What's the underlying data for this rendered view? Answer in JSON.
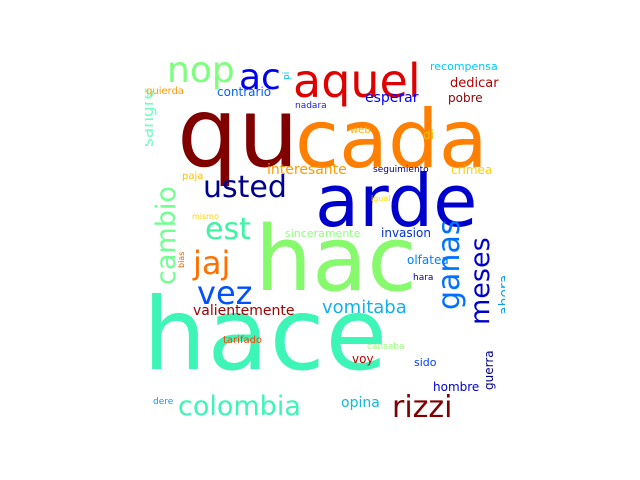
{
  "words": [
    {
      "id": "hace",
      "text": "hace",
      "color": "#3cf5b6"
    },
    {
      "id": "hac",
      "text": "hac",
      "color": "#86f96d"
    },
    {
      "id": "qu",
      "text": "qu",
      "color": "#800000"
    },
    {
      "id": "cada",
      "text": "cada",
      "color": "#ff7f00"
    },
    {
      "id": "arde",
      "text": "arde",
      "color": "#0000cd"
    },
    {
      "id": "aquel",
      "text": "aquel",
      "color": "#e00000"
    },
    {
      "id": "ac",
      "text": "ac",
      "color": "#0000ee"
    },
    {
      "id": "nop",
      "text": "nop",
      "color": "#7cff7c"
    },
    {
      "id": "usted",
      "text": "usted",
      "color": "#000090"
    },
    {
      "id": "est",
      "text": "est",
      "color": "#3cf5a0"
    },
    {
      "id": "jaj",
      "text": "jaj",
      "color": "#ff7000"
    },
    {
      "id": "vez",
      "text": "vez",
      "color": "#0050ff"
    },
    {
      "id": "cambio",
      "text": "cambio",
      "color": "#70ff90"
    },
    {
      "id": "colombia",
      "text": "colombia",
      "color": "#3cf5b6"
    },
    {
      "id": "rizzi",
      "text": "rizzi",
      "color": "#800000"
    },
    {
      "id": "ganas",
      "text": "ganas",
      "color": "#0070ff"
    },
    {
      "id": "meses",
      "text": "meses",
      "color": "#0000cd"
    },
    {
      "id": "vomitaba",
      "text": "vomitaba",
      "color": "#10b0f0"
    },
    {
      "id": "valientemente",
      "text": "valientemente",
      "color": "#a00000"
    },
    {
      "id": "interesante",
      "text": "interesante",
      "color": "#ff9a00"
    },
    {
      "id": "sangre",
      "text": "sangre",
      "color": "#70ffc0"
    },
    {
      "id": "recompensa",
      "text": "recompensa",
      "color": "#00c8ff"
    },
    {
      "id": "dedicar",
      "text": "dedicar",
      "color": "#b00000"
    },
    {
      "id": "pobre",
      "text": "pobre",
      "color": "#8b0000"
    },
    {
      "id": "esperar",
      "text": "esperar",
      "color": "#0000ff"
    },
    {
      "id": "contrario",
      "text": "contrario",
      "color": "#0060ff"
    },
    {
      "id": "izquierda",
      "text": "izquierda",
      "color": "#ff9a00"
    },
    {
      "id": "nadara",
      "text": "nadara",
      "color": "#2020e0"
    },
    {
      "id": "pi",
      "text": "pi",
      "color": "#00c0e0"
    },
    {
      "id": "web",
      "text": "web",
      "color": "#ffb000"
    },
    {
      "id": "di",
      "text": "di",
      "color": "#ffbf00"
    },
    {
      "id": "seguimiento",
      "text": "seguimiento",
      "color": "#000080"
    },
    {
      "id": "crimea",
      "text": "crimea",
      "color": "#ffd000"
    },
    {
      "id": "paja",
      "text": "paja",
      "color": "#ffc000"
    },
    {
      "id": "igual",
      "text": "igual",
      "color": "#ffe000"
    },
    {
      "id": "mismo",
      "text": "mismo",
      "color": "#ffd000"
    },
    {
      "id": "bias",
      "text": "bias",
      "color": "#e06000"
    },
    {
      "id": "sinceramente",
      "text": "sinceramente",
      "color": "#90ff80"
    },
    {
      "id": "invasion",
      "text": "invasion",
      "color": "#0030d0"
    },
    {
      "id": "olfatea",
      "text": "olfatea",
      "color": "#0080ff"
    },
    {
      "id": "ahora",
      "text": "ahora",
      "color": "#10a0f0"
    },
    {
      "id": "hara",
      "text": "hara",
      "color": "#0000a0"
    },
    {
      "id": "tarifado",
      "text": "tarifado",
      "color": "#ff4000"
    },
    {
      "id": "cansaba",
      "text": "cansaba",
      "color": "#a0ff80"
    },
    {
      "id": "voy",
      "text": "voy",
      "color": "#c00000"
    },
    {
      "id": "sido",
      "text": "sido",
      "color": "#0040ff"
    },
    {
      "id": "guerra",
      "text": "guerra",
      "color": "#000090"
    },
    {
      "id": "hombre",
      "text": "hombre",
      "color": "#0000cd"
    },
    {
      "id": "opina",
      "text": "opina",
      "color": "#10b8e0"
    },
    {
      "id": "dere",
      "text": "dere",
      "color": "#00a0ff"
    }
  ]
}
